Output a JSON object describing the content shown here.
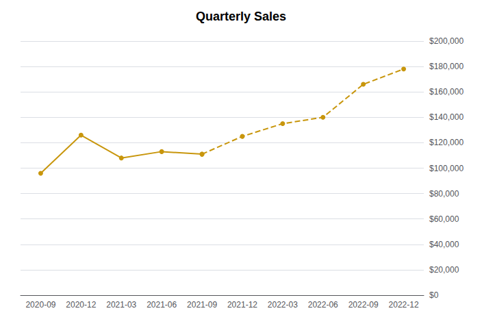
{
  "chart_data": {
    "type": "line",
    "title": "Quarterly Sales",
    "categories": [
      "2020-09",
      "2020-12",
      "2021-03",
      "2021-06",
      "2021-09",
      "2021-12",
      "2022-03",
      "2022-06",
      "2022-09",
      "2022-12"
    ],
    "series": [
      {
        "color": "#C8960C",
        "line_style": "solid",
        "marker": "circle",
        "values": [
          96000,
          126000,
          108000,
          113000,
          111000,
          null,
          null,
          null,
          null,
          null
        ]
      },
      {
        "color": "#C8960C",
        "line_style": "dashed",
        "marker": "circle",
        "values": [
          null,
          null,
          null,
          null,
          111000,
          125000,
          135000,
          140000,
          166000,
          178000
        ]
      }
    ],
    "ylim": [
      0,
      200000
    ],
    "yticks": [
      {
        "value": 0,
        "label": "$0"
      },
      {
        "value": 20000,
        "label": "$20,000"
      },
      {
        "value": 40000,
        "label": "$40,000"
      },
      {
        "value": 60000,
        "label": "$60,000"
      },
      {
        "value": 80000,
        "label": "$80,000"
      },
      {
        "value": 100000,
        "label": "$100,000"
      },
      {
        "value": 120000,
        "label": "$120,000"
      },
      {
        "value": 140000,
        "label": "$140,000"
      },
      {
        "value": 160000,
        "label": "$160,000"
      },
      {
        "value": 180000,
        "label": "$180,000"
      },
      {
        "value": 200000,
        "label": "$200,000"
      }
    ],
    "grid": true
  }
}
